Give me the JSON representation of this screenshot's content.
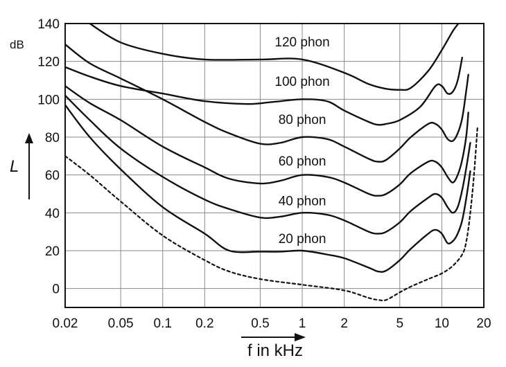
{
  "chart_data": {
    "type": "line",
    "title": "",
    "xlabel": "f in kHz",
    "ylabel": "L",
    "yunit": "dB",
    "xscale": "log",
    "xlim": [
      0.02,
      20
    ],
    "ylim": [
      -10,
      140
    ],
    "grid": true,
    "x_ticks": [
      {
        "value": 0.02,
        "label": "0.02"
      },
      {
        "value": 0.05,
        "label": "0.05"
      },
      {
        "value": 0.1,
        "label": "0.1"
      },
      {
        "value": 0.2,
        "label": "0.2"
      },
      {
        "value": 0.5,
        "label": "0.5"
      },
      {
        "value": 1,
        "label": "1"
      },
      {
        "value": 2,
        "label": "2"
      },
      {
        "value": 5,
        "label": "5"
      },
      {
        "value": 10,
        "label": "10"
      },
      {
        "value": 20,
        "label": "20"
      }
    ],
    "y_ticks": [
      {
        "value": 0,
        "label": "0"
      },
      {
        "value": 20,
        "label": "20"
      },
      {
        "value": 40,
        "label": "40"
      },
      {
        "value": 60,
        "label": "60"
      },
      {
        "value": 80,
        "label": "80"
      },
      {
        "value": 100,
        "label": "100"
      },
      {
        "value": 120,
        "label": "120"
      },
      {
        "value": 140,
        "label": "140"
      }
    ],
    "series": [
      {
        "name": "120 phon",
        "style": "solid",
        "label_at": {
          "x": 1,
          "y": 128
        },
        "points": [
          [
            0.03,
            140
          ],
          [
            0.05,
            130
          ],
          [
            0.1,
            124
          ],
          [
            0.2,
            121
          ],
          [
            0.5,
            121
          ],
          [
            1,
            121
          ],
          [
            2,
            114
          ],
          [
            3,
            108
          ],
          [
            4,
            105.5
          ],
          [
            5,
            105
          ],
          [
            6,
            106
          ],
          [
            8,
            115
          ],
          [
            10,
            126
          ],
          [
            12,
            136
          ],
          [
            13.5,
            141
          ]
        ]
      },
      {
        "name": "100 phon",
        "style": "solid",
        "label_at": {
          "x": 1,
          "y": 107
        },
        "points": [
          [
            0.02,
            117
          ],
          [
            0.03,
            112
          ],
          [
            0.05,
            107
          ],
          [
            0.1,
            103
          ],
          [
            0.2,
            99
          ],
          [
            0.4,
            97.5
          ],
          [
            0.6,
            98.5
          ],
          [
            1,
            100
          ],
          [
            1.5,
            99
          ],
          [
            2,
            94
          ],
          [
            3,
            88
          ],
          [
            3.5,
            86.5
          ],
          [
            4,
            87
          ],
          [
            5,
            89
          ],
          [
            7,
            96
          ],
          [
            9,
            107
          ],
          [
            10,
            107
          ],
          [
            11,
            103
          ],
          [
            12,
            104
          ],
          [
            13,
            110
          ],
          [
            14,
            122
          ]
        ]
      },
      {
        "name": "80 phon",
        "style": "solid",
        "label_at": {
          "x": 1,
          "y": 87
        },
        "points": [
          [
            0.02,
            129
          ],
          [
            0.03,
            119
          ],
          [
            0.05,
            111
          ],
          [
            0.1,
            100
          ],
          [
            0.2,
            88
          ],
          [
            0.3,
            82
          ],
          [
            0.5,
            76.5
          ],
          [
            0.7,
            77
          ],
          [
            1,
            80
          ],
          [
            1.5,
            79
          ],
          [
            2,
            75
          ],
          [
            3,
            68.5
          ],
          [
            3.5,
            67
          ],
          [
            4,
            68
          ],
          [
            5,
            74
          ],
          [
            6,
            80
          ],
          [
            8,
            87
          ],
          [
            9,
            87
          ],
          [
            10,
            84
          ],
          [
            11,
            79
          ],
          [
            12,
            78
          ],
          [
            13,
            82
          ],
          [
            14,
            90
          ],
          [
            15,
            105
          ],
          [
            15.5,
            113
          ]
        ]
      },
      {
        "name": "60 phon",
        "style": "solid",
        "label_at": {
          "x": 1,
          "y": 65
        },
        "points": [
          [
            0.02,
            107
          ],
          [
            0.03,
            98
          ],
          [
            0.05,
            89
          ],
          [
            0.1,
            75
          ],
          [
            0.2,
            64
          ],
          [
            0.3,
            58
          ],
          [
            0.5,
            55.5
          ],
          [
            0.7,
            57
          ],
          [
            1,
            60
          ],
          [
            1.5,
            59
          ],
          [
            2,
            56
          ],
          [
            3,
            50
          ],
          [
            3.5,
            49
          ],
          [
            4,
            50
          ],
          [
            5,
            55
          ],
          [
            6,
            61
          ],
          [
            8,
            67
          ],
          [
            9,
            67
          ],
          [
            10,
            64
          ],
          [
            11,
            59
          ],
          [
            12,
            56
          ],
          [
            13,
            60
          ],
          [
            14,
            68
          ],
          [
            15,
            81
          ],
          [
            15.5,
            93
          ]
        ]
      },
      {
        "name": "40 phon",
        "style": "solid",
        "label_at": {
          "x": 1,
          "y": 44
        },
        "points": [
          [
            0.02,
            102
          ],
          [
            0.03,
            89
          ],
          [
            0.05,
            74
          ],
          [
            0.1,
            59
          ],
          [
            0.2,
            47
          ],
          [
            0.3,
            42
          ],
          [
            0.5,
            37.5
          ],
          [
            0.7,
            38
          ],
          [
            1,
            40
          ],
          [
            1.5,
            39
          ],
          [
            2,
            36
          ],
          [
            3,
            30
          ],
          [
            3.5,
            29
          ],
          [
            4,
            30
          ],
          [
            5,
            35
          ],
          [
            6,
            41
          ],
          [
            8,
            48
          ],
          [
            9,
            50
          ],
          [
            10,
            48
          ],
          [
            11,
            43
          ],
          [
            12,
            40
          ],
          [
            13,
            43
          ],
          [
            14,
            52
          ],
          [
            15,
            64
          ],
          [
            16,
            77
          ]
        ]
      },
      {
        "name": "20 phon",
        "style": "solid",
        "label_at": {
          "x": 1,
          "y": 24
        },
        "points": [
          [
            0.02,
            97
          ],
          [
            0.03,
            80
          ],
          [
            0.05,
            63
          ],
          [
            0.1,
            43
          ],
          [
            0.2,
            29
          ],
          [
            0.3,
            20
          ],
          [
            0.5,
            19.5
          ],
          [
            0.7,
            19.5
          ],
          [
            1,
            20
          ],
          [
            1.5,
            18
          ],
          [
            2,
            16
          ],
          [
            3,
            11
          ],
          [
            3.5,
            9
          ],
          [
            4,
            9.5
          ],
          [
            5,
            15
          ],
          [
            6,
            21
          ],
          [
            8,
            29
          ],
          [
            9,
            31
          ],
          [
            10,
            29
          ],
          [
            11,
            24
          ],
          [
            12,
            25
          ],
          [
            13,
            29
          ],
          [
            14,
            36
          ],
          [
            15,
            48
          ],
          [
            16,
            62
          ]
        ]
      },
      {
        "name": "hearing threshold",
        "style": "dashed",
        "points": [
          [
            0.02,
            70
          ],
          [
            0.03,
            60
          ],
          [
            0.05,
            46
          ],
          [
            0.1,
            28
          ],
          [
            0.2,
            15
          ],
          [
            0.3,
            9
          ],
          [
            0.5,
            5
          ],
          [
            1,
            2
          ],
          [
            2,
            -1
          ],
          [
            3,
            -5
          ],
          [
            3.5,
            -6
          ],
          [
            4,
            -6
          ],
          [
            5,
            -2
          ],
          [
            6,
            1
          ],
          [
            8,
            5
          ],
          [
            10,
            8
          ],
          [
            12,
            12
          ],
          [
            14,
            18
          ],
          [
            15,
            25
          ],
          [
            16,
            40
          ],
          [
            17,
            60
          ],
          [
            18,
            85
          ]
        ]
      }
    ]
  }
}
